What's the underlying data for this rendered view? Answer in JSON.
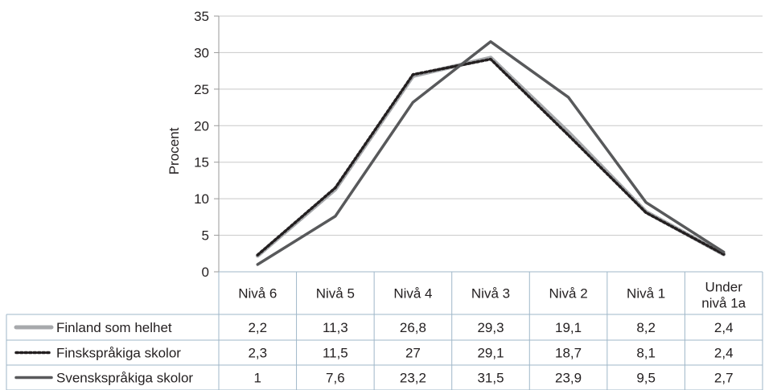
{
  "chart_data": {
    "type": "line",
    "ylabel": "Procent",
    "ylim": [
      0,
      35
    ],
    "yticks": [
      0,
      5,
      10,
      15,
      20,
      25,
      30,
      35
    ],
    "grid": true,
    "categories": [
      "Nivå 6",
      "Nivå 5",
      "Nivå 4",
      "Nivå 3",
      "Nivå 2",
      "Nivå 1",
      "Under nivå 1a"
    ],
    "series": [
      {
        "name": "Finland som helhet",
        "values": [
          2.2,
          11.3,
          26.8,
          29.3,
          19.1,
          8.2,
          2.4
        ],
        "labels": [
          "2,2",
          "11,3",
          "26,8",
          "29,3",
          "19,1",
          "8,2",
          "2,4"
        ],
        "color": "#a7a9ac",
        "style": "solid"
      },
      {
        "name": "Finskspråkiga skolor",
        "values": [
          2.3,
          11.5,
          27,
          29.1,
          18.7,
          8.1,
          2.4
        ],
        "labels": [
          "2,3",
          "11,5",
          "27",
          "29,1",
          "18,7",
          "8,1",
          "2,4"
        ],
        "color": "#231f20",
        "style": "dotted"
      },
      {
        "name": "Svenskspråkiga skolor",
        "values": [
          1,
          7.6,
          23.2,
          31.5,
          23.9,
          9.5,
          2.7
        ],
        "labels": [
          "1",
          "7,6",
          "23,2",
          "31,5",
          "23,9",
          "9,5",
          "2,7"
        ],
        "color": "#58595b",
        "style": "solid"
      }
    ],
    "legend": "data-table-left"
  }
}
